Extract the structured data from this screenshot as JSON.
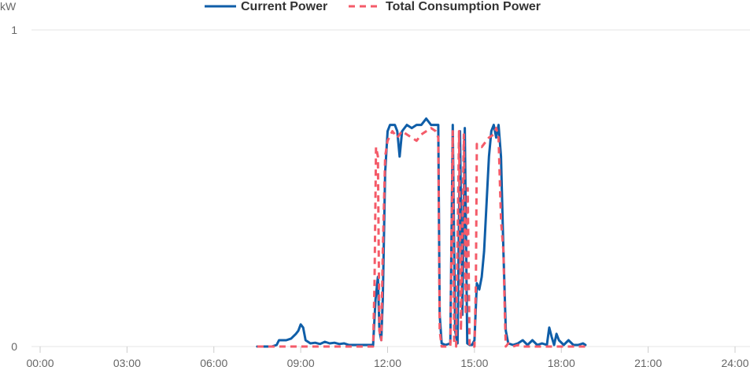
{
  "chart_data": {
    "type": "line",
    "ylabel": "kW",
    "ylim": [
      0,
      1
    ],
    "yticks": [
      "0",
      "1"
    ],
    "xlim": [
      "00:00",
      "24:00"
    ],
    "xticks": [
      "00:00",
      "03:00",
      "06:00",
      "09:00",
      "12:00",
      "15:00",
      "18:00",
      "21:00",
      "24:00"
    ],
    "legend_position": "top-center",
    "grid": true,
    "series": [
      {
        "name": "Current Power",
        "color": "#0f5ea8",
        "style": "solid",
        "points": [
          [
            "07:30",
            0
          ],
          [
            "08:00",
            0
          ],
          [
            "08:10",
            0.005
          ],
          [
            "08:15",
            0.02
          ],
          [
            "08:30",
            0.02
          ],
          [
            "08:40",
            0.025
          ],
          [
            "08:50",
            0.04
          ],
          [
            "08:55",
            0.05
          ],
          [
            "09:00",
            0.07
          ],
          [
            "09:05",
            0.06
          ],
          [
            "09:10",
            0.02
          ],
          [
            "09:20",
            0.01
          ],
          [
            "09:30",
            0.012
          ],
          [
            "09:40",
            0.008
          ],
          [
            "09:50",
            0.015
          ],
          [
            "10:00",
            0.01
          ],
          [
            "10:10",
            0.012
          ],
          [
            "10:20",
            0.008
          ],
          [
            "10:30",
            0.01
          ],
          [
            "10:40",
            0.005
          ],
          [
            "10:50",
            0.005
          ],
          [
            "11:00",
            0.005
          ],
          [
            "11:10",
            0.005
          ],
          [
            "11:20",
            0.005
          ],
          [
            "11:30",
            0.005
          ],
          [
            "11:35",
            0.15
          ],
          [
            "11:40",
            0.22
          ],
          [
            "11:43",
            0.05
          ],
          [
            "11:47",
            0.02
          ],
          [
            "11:50",
            0.15
          ],
          [
            "11:55",
            0.55
          ],
          [
            "12:00",
            0.68
          ],
          [
            "12:05",
            0.7
          ],
          [
            "12:15",
            0.7
          ],
          [
            "12:20",
            0.68
          ],
          [
            "12:25",
            0.6
          ],
          [
            "12:30",
            0.68
          ],
          [
            "12:40",
            0.7
          ],
          [
            "12:50",
            0.69
          ],
          [
            "13:00",
            0.7
          ],
          [
            "13:10",
            0.7
          ],
          [
            "13:20",
            0.72
          ],
          [
            "13:30",
            0.7
          ],
          [
            "13:40",
            0.7
          ],
          [
            "13:45",
            0.7
          ],
          [
            "13:48",
            0.1
          ],
          [
            "13:52",
            0.01
          ],
          [
            "14:00",
            0.005
          ],
          [
            "14:10",
            0.01
          ],
          [
            "14:15",
            0.7
          ],
          [
            "14:20",
            0.05
          ],
          [
            "14:25",
            0.01
          ],
          [
            "14:30",
            0.68
          ],
          [
            "14:35",
            0.1
          ],
          [
            "14:40",
            0.69
          ],
          [
            "14:45",
            0.01
          ],
          [
            "14:50",
            0.005
          ],
          [
            "14:55",
            0.005
          ],
          [
            "15:00",
            0.02
          ],
          [
            "15:05",
            0.2
          ],
          [
            "15:10",
            0.18
          ],
          [
            "15:15",
            0.22
          ],
          [
            "15:20",
            0.3
          ],
          [
            "15:25",
            0.45
          ],
          [
            "15:30",
            0.6
          ],
          [
            "15:35",
            0.68
          ],
          [
            "15:40",
            0.7
          ],
          [
            "15:45",
            0.66
          ],
          [
            "15:50",
            0.7
          ],
          [
            "15:55",
            0.6
          ],
          [
            "16:00",
            0.3
          ],
          [
            "16:05",
            0.05
          ],
          [
            "16:10",
            0.01
          ],
          [
            "16:20",
            0.005
          ],
          [
            "16:30",
            0.01
          ],
          [
            "16:40",
            0.02
          ],
          [
            "16:50",
            0.005
          ],
          [
            "17:00",
            0.02
          ],
          [
            "17:10",
            0.005
          ],
          [
            "17:20",
            0.01
          ],
          [
            "17:30",
            0.005
          ],
          [
            "17:35",
            0.06
          ],
          [
            "17:40",
            0.03
          ],
          [
            "17:45",
            0.005
          ],
          [
            "17:50",
            0.04
          ],
          [
            "17:55",
            0.02
          ],
          [
            "18:05",
            0.005
          ],
          [
            "18:15",
            0.02
          ],
          [
            "18:25",
            0.005
          ],
          [
            "18:35",
            0.005
          ],
          [
            "18:45",
            0.01
          ],
          [
            "18:50",
            0.005
          ]
        ]
      },
      {
        "name": "Total Consumption Power",
        "color": "#f45b69",
        "style": "dashed",
        "points": [
          [
            "07:30",
            0
          ],
          [
            "11:20",
            0
          ],
          [
            "11:30",
            0
          ],
          [
            "11:33",
            0.2
          ],
          [
            "11:36",
            0.63
          ],
          [
            "11:40",
            0.6
          ],
          [
            "11:43",
            0.05
          ],
          [
            "11:47",
            0.02
          ],
          [
            "11:50",
            0.3
          ],
          [
            "11:55",
            0.6
          ],
          [
            "12:00",
            0.65
          ],
          [
            "12:10",
            0.68
          ],
          [
            "12:20",
            0.66
          ],
          [
            "12:30",
            0.68
          ],
          [
            "12:40",
            0.67
          ],
          [
            "12:50",
            0.66
          ],
          [
            "13:00",
            0.65
          ],
          [
            "13:10",
            0.67
          ],
          [
            "13:20",
            0.68
          ],
          [
            "13:30",
            0.69
          ],
          [
            "13:40",
            0.68
          ],
          [
            "13:45",
            0.66
          ],
          [
            "13:48",
            0.05
          ],
          [
            "13:52",
            0
          ],
          [
            "14:10",
            0
          ],
          [
            "14:15",
            0.68
          ],
          [
            "14:18",
            0.01
          ],
          [
            "14:22",
            0
          ],
          [
            "14:28",
            0.68
          ],
          [
            "14:32",
            0.05
          ],
          [
            "14:38",
            0.67
          ],
          [
            "14:42",
            0.1
          ],
          [
            "14:46",
            0.5
          ],
          [
            "14:50",
            0
          ],
          [
            "15:00",
            0
          ],
          [
            "15:03",
            0.2
          ],
          [
            "15:05",
            0.64
          ],
          [
            "15:15",
            0.63
          ],
          [
            "15:20",
            0.64
          ],
          [
            "15:30",
            0.66
          ],
          [
            "15:40",
            0.67
          ],
          [
            "15:45",
            0.69
          ],
          [
            "15:50",
            0.66
          ],
          [
            "15:55",
            0.4
          ],
          [
            "16:00",
            0.3
          ],
          [
            "16:03",
            0.1
          ],
          [
            "16:05",
            0
          ],
          [
            "16:10",
            0.01
          ],
          [
            "16:20",
            0
          ],
          [
            "16:30",
            0.005
          ],
          [
            "16:40",
            0
          ],
          [
            "16:50",
            0
          ],
          [
            "17:00",
            0
          ],
          [
            "17:20",
            0
          ],
          [
            "17:40",
            0
          ],
          [
            "18:00",
            0
          ],
          [
            "18:20",
            0
          ],
          [
            "18:40",
            0
          ],
          [
            "18:50",
            0
          ]
        ]
      }
    ]
  }
}
